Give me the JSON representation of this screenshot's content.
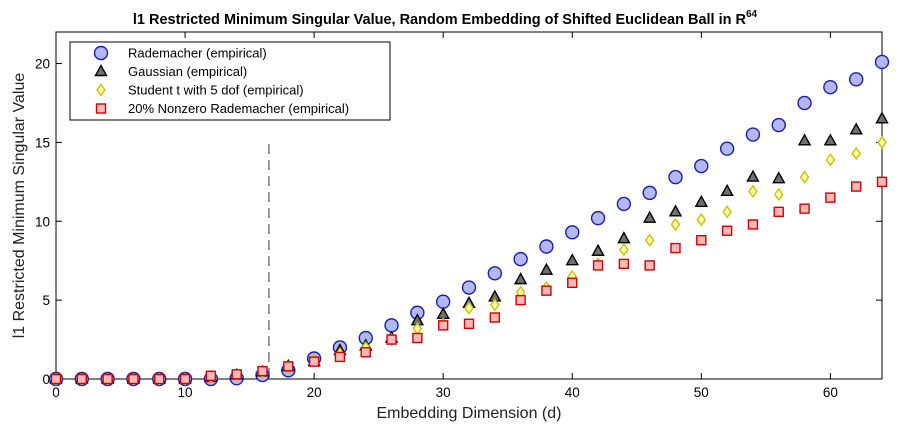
{
  "chart_data": {
    "type": "scatter",
    "title": "l1 Restricted Minimum Singular Value, Random Embedding of Shifted Euclidean Ball in R",
    "title_superscript": "64",
    "xlabel": "Embedding Dimension (d)",
    "ylabel": "l1 Restricted Minimum Singular Value",
    "xlim": [
      0,
      64
    ],
    "ylim": [
      0,
      22
    ],
    "xticks": [
      0,
      10,
      20,
      30,
      40,
      50,
      60
    ],
    "yticks": [
      0,
      5,
      10,
      15,
      20
    ],
    "grid": false,
    "legend_position": "top-left",
    "vline_x": 16.5,
    "x": [
      0,
      2,
      4,
      6,
      8,
      10,
      12,
      14,
      16,
      18,
      20,
      22,
      24,
      26,
      28,
      30,
      32,
      34,
      36,
      38,
      40,
      42,
      44,
      46,
      48,
      50,
      52,
      54,
      56,
      58,
      60,
      62,
      64
    ],
    "series": [
      {
        "name": "Rademacher (empirical)",
        "marker": "circle",
        "fill": "#b3b8f2",
        "stroke": "#1a1fb0",
        "values": [
          0.0,
          0.0,
          0.0,
          0.0,
          0.0,
          0.0,
          0.0,
          0.05,
          0.25,
          0.55,
          1.3,
          2.0,
          2.6,
          3.4,
          4.2,
          4.9,
          5.8,
          6.7,
          7.6,
          8.4,
          9.3,
          10.2,
          11.1,
          11.8,
          12.8,
          13.5,
          14.6,
          15.5,
          16.1,
          17.5,
          18.5,
          19.0,
          20.1
        ]
      },
      {
        "name": "Gaussian (empirical)",
        "marker": "triangle",
        "fill": "#707070",
        "stroke": "#000000",
        "values": [
          0.0,
          0.0,
          0.0,
          0.0,
          0.0,
          0.0,
          0.1,
          0.25,
          0.45,
          0.8,
          1.1,
          1.8,
          2.1,
          2.6,
          3.7,
          4.1,
          4.8,
          5.2,
          6.3,
          6.9,
          7.5,
          8.1,
          8.9,
          10.2,
          10.6,
          11.2,
          11.9,
          12.8,
          12.7,
          15.1,
          15.1,
          15.8,
          16.5
        ]
      },
      {
        "name": "Student t with 5 dof (empirical)",
        "marker": "diamond",
        "fill": "#fbfbb0",
        "stroke": "#c9c400",
        "values": [
          0.0,
          0.0,
          0.0,
          0.0,
          0.0,
          0.0,
          0.1,
          0.25,
          0.45,
          0.75,
          1.2,
          1.6,
          2.0,
          2.5,
          3.2,
          3.5,
          4.5,
          4.7,
          5.5,
          5.8,
          6.5,
          7.3,
          8.2,
          8.8,
          9.8,
          10.1,
          10.6,
          11.9,
          11.7,
          12.8,
          13.9,
          14.3,
          15.0
        ]
      },
      {
        "name": "20% Nonzero Rademacher (empirical)",
        "marker": "square",
        "fill": "#f8b8b8",
        "stroke": "#d10000",
        "values": [
          0.0,
          0.0,
          0.0,
          0.0,
          0.0,
          0.0,
          0.2,
          0.3,
          0.5,
          0.8,
          1.1,
          1.4,
          1.7,
          2.5,
          2.6,
          3.4,
          3.5,
          3.9,
          5.0,
          5.6,
          6.1,
          7.2,
          7.3,
          7.2,
          8.3,
          8.8,
          9.4,
          9.8,
          10.6,
          10.8,
          11.5,
          12.2,
          12.5
        ]
      }
    ]
  }
}
